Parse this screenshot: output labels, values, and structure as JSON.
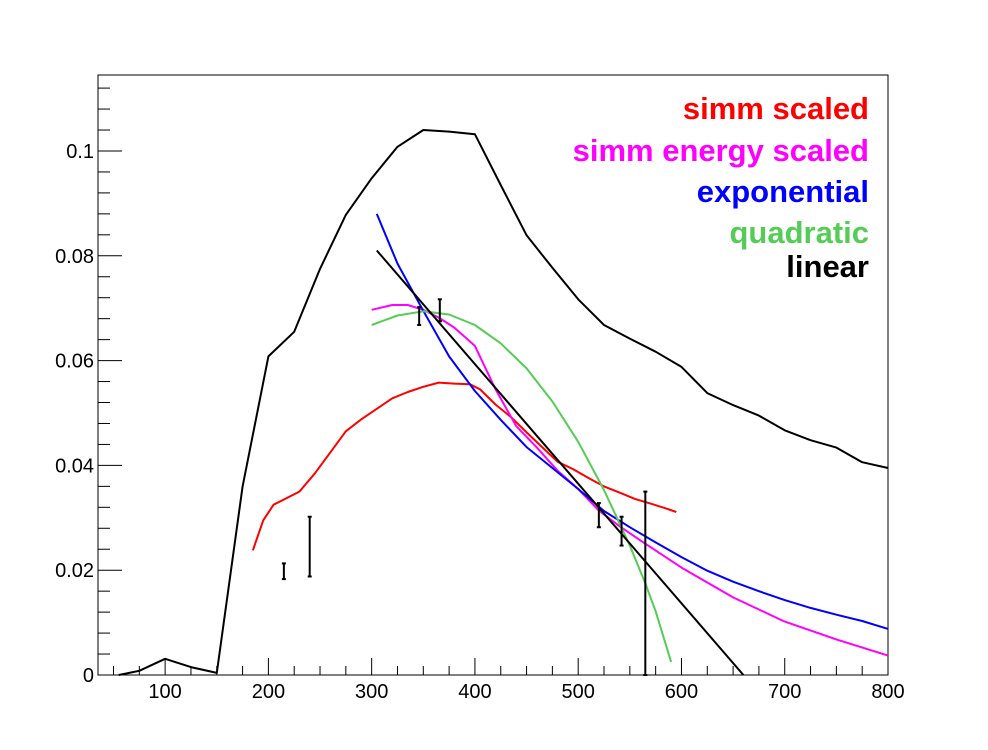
{
  "chart_data": {
    "type": "line",
    "title": "",
    "xlabel": "",
    "ylabel": "",
    "xlim": [
      35,
      800
    ],
    "ylim": [
      0,
      0.1145
    ],
    "x_ticks": [
      100,
      200,
      300,
      400,
      500,
      600,
      700,
      800
    ],
    "x_tick_labels": [
      "100",
      "200",
      "300",
      "400",
      "500",
      "600",
      "700",
      "800"
    ],
    "y_ticks": [
      0,
      0.02,
      0.04,
      0.06,
      0.08,
      0.1
    ],
    "y_tick_labels": [
      "0",
      "0.02",
      "0.04",
      "0.06",
      "0.08",
      "0.1"
    ],
    "grid": false,
    "legend_placement": "top-right",
    "legend": [
      {
        "label": "simm scaled",
        "color": "#ff0000"
      },
      {
        "label": "simm energy scaled",
        "color": "#ff00ff"
      },
      {
        "label": "exponential",
        "color": "#0000ff"
      },
      {
        "label": "quadratic",
        "color": "#55cc55"
      },
      {
        "label": "linear",
        "color": "#000000"
      }
    ],
    "series": [
      {
        "color": "#000000",
        "x": [
          55,
          75,
          100,
          125,
          150,
          175,
          200,
          225,
          250,
          275,
          300,
          325,
          350,
          375,
          400,
          425,
          450,
          475,
          500,
          525,
          550,
          575,
          600,
          625,
          650,
          675,
          700,
          725,
          750,
          775,
          800
        ],
        "y": [
          0,
          0.0008,
          0.0031,
          0.0015,
          0.0004,
          0.036,
          0.0608,
          0.0655,
          0.0775,
          0.0878,
          0.0948,
          0.1008,
          0.104,
          0.1037,
          0.1032,
          0.0935,
          0.0839,
          0.0777,
          0.0717,
          0.0668,
          0.0642,
          0.0617,
          0.0588,
          0.0538,
          0.0515,
          0.0495,
          0.0467,
          0.0448,
          0.0434,
          0.0406,
          0.0395
        ]
      },
      {
        "name": "simm scaled",
        "color": "#ff0000",
        "x": [
          185,
          195,
          205,
          215,
          230,
          245,
          260,
          275,
          290,
          305,
          320,
          335,
          350,
          365,
          380,
          395,
          405,
          420,
          435,
          450,
          465,
          480,
          495,
          510,
          525,
          540,
          555,
          570,
          585,
          595
        ],
        "y": [
          0.0238,
          0.0295,
          0.0325,
          0.0335,
          0.035,
          0.0385,
          0.0425,
          0.0465,
          0.0488,
          0.0508,
          0.0528,
          0.054,
          0.055,
          0.0558,
          0.0556,
          0.0555,
          0.0545,
          0.0516,
          0.0492,
          0.0463,
          0.0435,
          0.0407,
          0.0393,
          0.0376,
          0.036,
          0.0348,
          0.0336,
          0.0327,
          0.0318,
          0.0311
        ]
      },
      {
        "name": "simm energy scaled",
        "color": "#ff00ff",
        "x": [
          300,
          320,
          335,
          350,
          365,
          380,
          400,
          420,
          440,
          460,
          480,
          500,
          520,
          540,
          560,
          600,
          650,
          700,
          750,
          800
        ],
        "y": [
          0.0697,
          0.0706,
          0.0706,
          0.0697,
          0.0682,
          0.0663,
          0.0628,
          0.0545,
          0.0475,
          0.0434,
          0.039,
          0.0355,
          0.0314,
          0.0284,
          0.0257,
          0.0205,
          0.0148,
          0.0102,
          0.0068,
          0.0037
        ]
      },
      {
        "name": "exponential",
        "color": "#0000ff",
        "x": [
          305,
          325,
          350,
          375,
          400,
          425,
          450,
          475,
          500,
          525,
          550,
          575,
          600,
          625,
          650,
          675,
          700,
          725,
          750,
          775,
          800
        ],
        "y": [
          0.088,
          0.0785,
          0.0695,
          0.0608,
          0.0542,
          0.0487,
          0.0435,
          0.0395,
          0.0355,
          0.0313,
          0.0282,
          0.0253,
          0.0225,
          0.0199,
          0.0178,
          0.016,
          0.0143,
          0.0128,
          0.0115,
          0.0103,
          0.0088
        ]
      },
      {
        "name": "quadratic",
        "color": "#55cc55",
        "x": [
          300,
          325,
          350,
          375,
          400,
          425,
          450,
          475,
          500,
          525,
          550,
          565,
          575,
          590
        ],
        "y": [
          0.0668,
          0.0686,
          0.0694,
          0.0688,
          0.0668,
          0.0633,
          0.0585,
          0.0522,
          0.0445,
          0.0353,
          0.0247,
          0.0175,
          0.0122,
          0.0025
        ]
      },
      {
        "name": "linear",
        "color": "#000000",
        "x": [
          305,
          660
        ],
        "y": [
          0.081,
          0.0
        ]
      }
    ],
    "error_bars": [
      {
        "x": 215,
        "y": 0.0198,
        "low": 0.0183,
        "high": 0.0213
      },
      {
        "x": 240,
        "y": 0.0245,
        "low": 0.0188,
        "high": 0.0302
      },
      {
        "x": 346,
        "y": 0.0685,
        "low": 0.0668,
        "high": 0.0702
      },
      {
        "x": 366,
        "y": 0.0697,
        "low": 0.0675,
        "high": 0.0717
      },
      {
        "x": 520,
        "y": 0.0305,
        "low": 0.0282,
        "high": 0.0328
      },
      {
        "x": 542,
        "y": 0.0275,
        "low": 0.0247,
        "high": 0.0302
      },
      {
        "x": 565,
        "y": 0.0175,
        "low": 0.0,
        "high": 0.035
      }
    ]
  }
}
